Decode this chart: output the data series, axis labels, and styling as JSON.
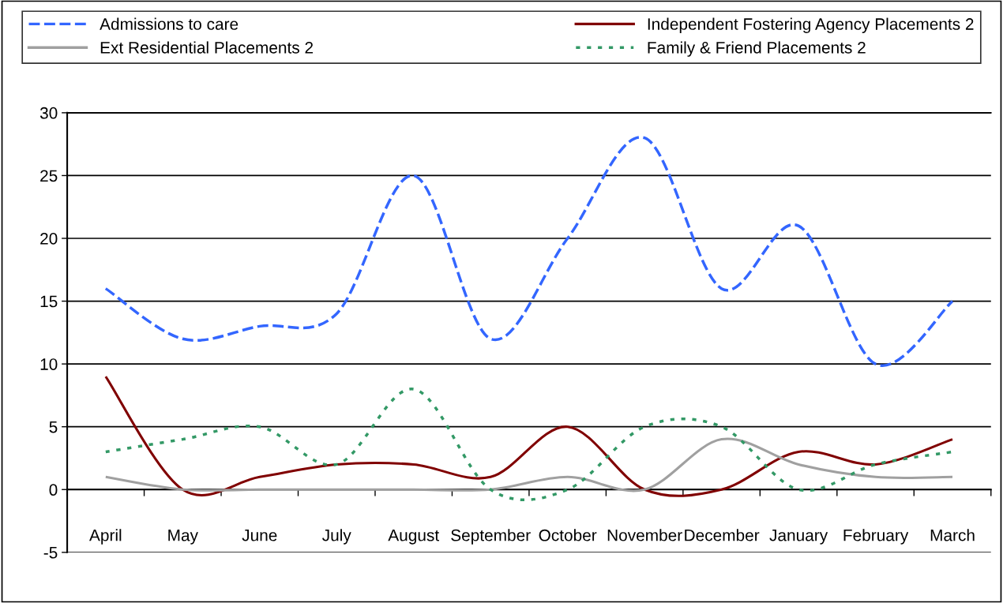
{
  "chart_data": {
    "type": "line",
    "categories": [
      "April",
      "May",
      "June",
      "July",
      "August",
      "September",
      "October",
      "November",
      "December",
      "January",
      "February",
      "March"
    ],
    "series": [
      {
        "name": "Admissions to care",
        "color": "#3366ff",
        "line_style": "dashed",
        "values": [
          16,
          12,
          13,
          14,
          25,
          12,
          20,
          28,
          16,
          21,
          10,
          15
        ]
      },
      {
        "name": "Independent Fostering Agency Placements 2",
        "color": "#800000",
        "line_style": "solid",
        "values": [
          9,
          0,
          1,
          2,
          2,
          1,
          5,
          0,
          0,
          3,
          2,
          4
        ]
      },
      {
        "name": "Ext Residential Placements 2",
        "color": "#a0a0a0",
        "line_style": "solid",
        "values": [
          1,
          0,
          0,
          0,
          0,
          0,
          1,
          0,
          4,
          2,
          1,
          1
        ]
      },
      {
        "name": "Family & Friend Placements 2",
        "color": "#339966",
        "line_style": "dotted",
        "values": [
          3,
          4,
          5,
          2,
          8,
          0,
          0,
          5,
          5,
          0,
          2,
          3
        ]
      }
    ],
    "ylim": [
      -5,
      30
    ],
    "yticks": [
      -5,
      0,
      5,
      10,
      15,
      20,
      25,
      30
    ],
    "grid": "y",
    "legend": "top",
    "marker": "none"
  }
}
